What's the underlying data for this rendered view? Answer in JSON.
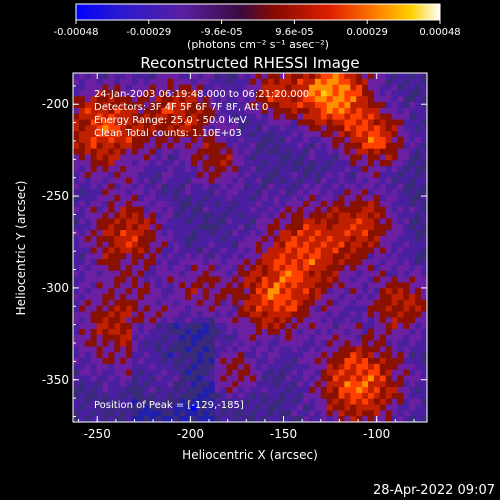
{
  "colorbar": {
    "ticks": [
      "-0.00048",
      "-0.00029",
      "-9.6e-05",
      "9.6e-05",
      "0.00029",
      "0.00048"
    ],
    "unit_label": "(photons cm⁻² s⁻¹ asec⁻²)",
    "range": [
      -0.00048,
      0.00048
    ]
  },
  "chart_data": {
    "type": "heatmap",
    "title": "Reconstructed RHESSI Image",
    "xlabel": "Heliocentric X (arcsec)",
    "ylabel": "Heliocentric Y (arcsec)",
    "xlim": [
      -263,
      -73
    ],
    "ylim": [
      -373,
      -183
    ],
    "xticks": [
      "-250",
      "-200",
      "-150",
      "-100"
    ],
    "xtick_values": [
      -250,
      -200,
      -150,
      -100
    ],
    "yticks": [
      "-200",
      "-250",
      "-300",
      "-350"
    ],
    "ytick_values": [
      -200,
      -250,
      -300,
      -350
    ],
    "info_lines": [
      "24-Jan-2003 06:19:48.000 to 06:21:20.000",
      "Detectors: 3F 4F 5F 6F 7F 8F, Att 0",
      "Energy Range: 25.0 - 50.0 keV",
      "Clean     Total counts: 1.10E+03"
    ],
    "peak_label": "Position of Peak = [-129,-185]",
    "peak": [
      -129,
      -185
    ],
    "grid_size": 60,
    "colormap": [
      "#0000ff",
      "#2020aa",
      "#3a2a7a",
      "#4a1fa0",
      "#6a20a0",
      "#8a1000",
      "#c02000",
      "#ff4000",
      "#ff9000",
      "#ffd000",
      "#ffffff"
    ]
  },
  "timestamp": "28-Apr-2022 09:07"
}
